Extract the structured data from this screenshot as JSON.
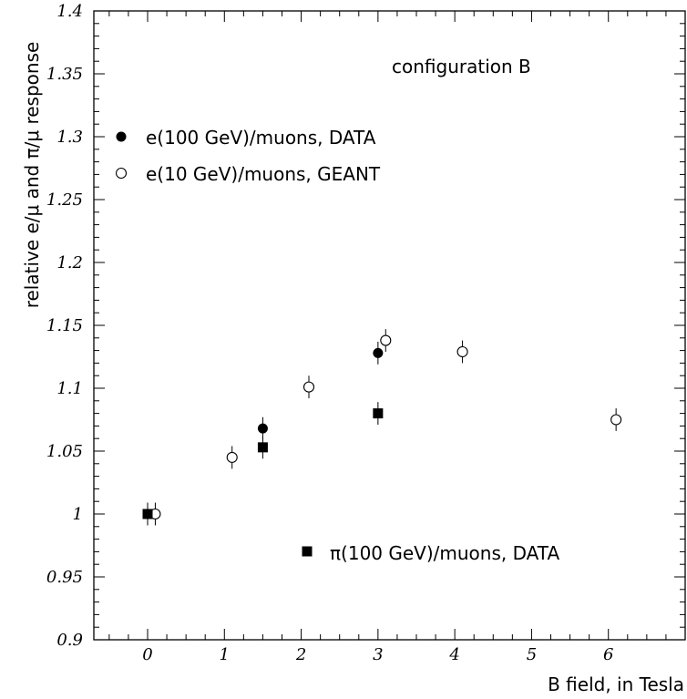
{
  "chart_data": {
    "type": "scatter",
    "xlabel": "B field, in Tesla",
    "ylabel": "relative e/μ and π/μ response",
    "xlim": [
      -0.7,
      7.0
    ],
    "ylim": [
      0.9,
      1.4
    ],
    "xticks": [
      "0",
      "1",
      "2",
      "3",
      "4",
      "5",
      "6"
    ],
    "yticks": [
      "0.9",
      "0.95",
      "1",
      "1.05",
      "1.1",
      "1.15",
      "1.2",
      "1.25",
      "1.3",
      "1.35",
      "1.4"
    ],
    "annotation": "configuration B",
    "grid": false,
    "series": [
      {
        "name": "e(100 GeV)/muons, DATA",
        "marker": "filled-circle",
        "points": [
          {
            "x": 0,
            "y": 1.0,
            "err": 0.009
          },
          {
            "x": 1.5,
            "y": 1.068,
            "err": 0.009
          },
          {
            "x": 3.0,
            "y": 1.128,
            "err": 0.009
          }
        ]
      },
      {
        "name": "e(10 GeV)/muons, GEANT",
        "marker": "open-circle",
        "points": [
          {
            "x": 0.1,
            "y": 1.0,
            "err": 0.009
          },
          {
            "x": 1.1,
            "y": 1.045,
            "err": 0.009
          },
          {
            "x": 2.1,
            "y": 1.101,
            "err": 0.009
          },
          {
            "x": 3.1,
            "y": 1.138,
            "err": 0.009
          },
          {
            "x": 4.1,
            "y": 1.129,
            "err": 0.009
          },
          {
            "x": 6.1,
            "y": 1.075,
            "err": 0.009
          }
        ]
      },
      {
        "name": "π(100 GeV)/muons, DATA",
        "marker": "filled-square",
        "points": [
          {
            "x": 0,
            "y": 1.0,
            "err": 0.009
          },
          {
            "x": 1.5,
            "y": 1.053,
            "err": 0.009
          },
          {
            "x": 3.0,
            "y": 1.08,
            "err": 0.009
          }
        ]
      }
    ],
    "legend": [
      {
        "label": "e(100 GeV)/muons, DATA",
        "marker": "filled-circle",
        "placement": "upper-left"
      },
      {
        "label": "e(10 GeV)/muons, GEANT",
        "marker": "open-circle",
        "placement": "upper-left"
      },
      {
        "label": "π(100 GeV)/muons, DATA",
        "marker": "filled-square",
        "placement": "lower-right"
      }
    ]
  }
}
